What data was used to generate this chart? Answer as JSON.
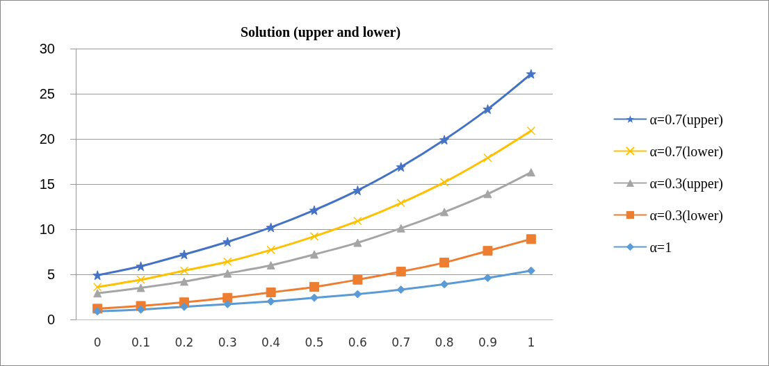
{
  "chart_data": {
    "type": "line",
    "title": "Solution (upper and lower)",
    "categories": [
      "0",
      "0.1",
      "0.2",
      "0.3",
      "0.4",
      "0.5",
      "0.6",
      "0.7",
      "0.8",
      "0.9",
      "1"
    ],
    "ylim": [
      0,
      30
    ],
    "yticks": [
      0,
      5,
      10,
      15,
      20,
      25,
      30
    ],
    "grid": "y",
    "legend": "right",
    "series": [
      {
        "name": "α=0.7(upper)",
        "color": "#4472c4",
        "marker": "star",
        "values": [
          4.9,
          5.9,
          7.2,
          8.6,
          10.2,
          12.1,
          14.3,
          16.9,
          19.9,
          23.3,
          27.2
        ]
      },
      {
        "name": "α=0.7(lower)",
        "color": "#ffc000",
        "marker": "cross",
        "values": [
          3.6,
          4.4,
          5.4,
          6.4,
          7.7,
          9.2,
          10.9,
          12.9,
          15.2,
          17.9,
          20.9
        ]
      },
      {
        "name": "α=0.3(upper)",
        "color": "#a5a5a5",
        "marker": "triangle",
        "values": [
          2.9,
          3.5,
          4.2,
          5.1,
          6.0,
          7.2,
          8.5,
          10.1,
          11.9,
          13.9,
          16.3
        ]
      },
      {
        "name": "α=0.3(lower)",
        "color": "#ed7d31",
        "marker": "square",
        "values": [
          1.2,
          1.5,
          1.9,
          2.4,
          3.0,
          3.6,
          4.4,
          5.3,
          6.3,
          7.6,
          8.9
        ]
      },
      {
        "name": "α=1",
        "color": "#5b9bd5",
        "marker": "diamond",
        "values": [
          0.9,
          1.1,
          1.4,
          1.7,
          2.0,
          2.4,
          2.8,
          3.3,
          3.9,
          4.6,
          5.4
        ]
      }
    ]
  }
}
